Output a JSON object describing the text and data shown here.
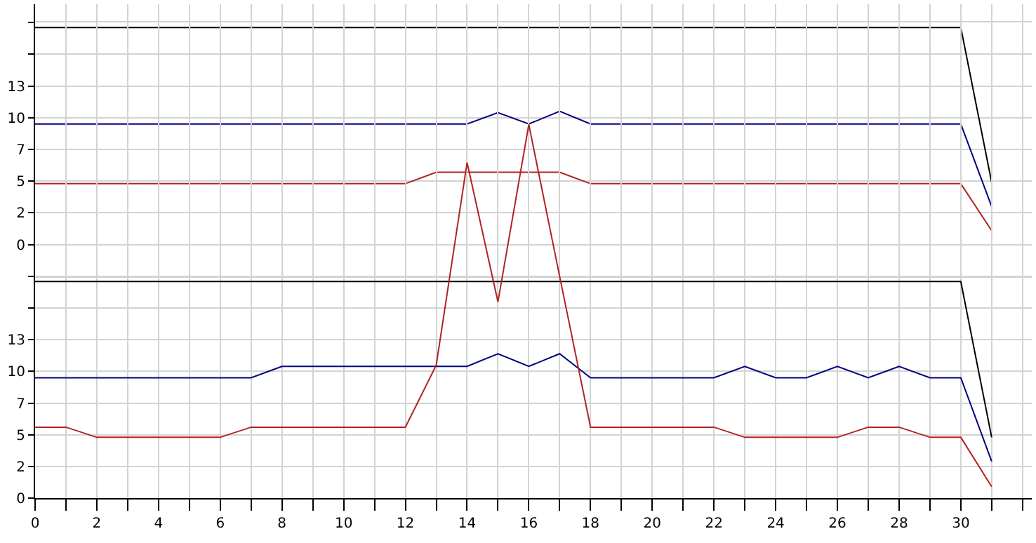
{
  "chart_data": [
    {
      "type": "line",
      "x": [
        0,
        1,
        2,
        3,
        4,
        5,
        6,
        7,
        8,
        9,
        10,
        11,
        12,
        13,
        14,
        15,
        16,
        17,
        18,
        19,
        20,
        21,
        22,
        23,
        24,
        25,
        26,
        27,
        28,
        29,
        30,
        31
      ],
      "series": [
        {
          "color": "#000000",
          "values": [
            17.1,
            17.1,
            17.1,
            17.1,
            17.1,
            17.1,
            17.1,
            17.1,
            17.1,
            17.1,
            17.1,
            17.1,
            17.1,
            17.1,
            17.1,
            17.1,
            17.1,
            17.1,
            17.1,
            17.1,
            17.1,
            17.1,
            17.1,
            17.1,
            17.1,
            17.1,
            17.1,
            17.1,
            17.1,
            17.1,
            17.1,
            4.9
          ]
        },
        {
          "color": "#000080",
          "values": [
            9.5,
            9.5,
            9.5,
            9.5,
            9.5,
            9.5,
            9.5,
            9.5,
            9.5,
            9.5,
            9.5,
            9.5,
            9.5,
            9.5,
            9.5,
            10.4,
            9.5,
            10.5,
            9.5,
            9.5,
            9.5,
            9.5,
            9.5,
            9.5,
            9.5,
            9.5,
            9.5,
            9.5,
            9.5,
            9.5,
            9.5,
            3.0
          ]
        },
        {
          "color": "#b22222",
          "values": [
            4.8,
            4.8,
            4.8,
            4.8,
            4.8,
            4.8,
            4.8,
            4.8,
            4.8,
            4.8,
            4.8,
            4.8,
            4.8,
            5.7,
            5.7,
            5.7,
            5.7,
            5.7,
            4.8,
            4.8,
            4.8,
            4.8,
            4.8,
            4.8,
            4.8,
            4.8,
            4.8,
            4.8,
            4.8,
            4.8,
            4.8,
            1.1
          ]
        }
      ],
      "xlim": [
        0,
        32.3
      ],
      "xticks": [
        0,
        1,
        2,
        3,
        4,
        5,
        6,
        7,
        8,
        9,
        10,
        11,
        12,
        13,
        14,
        15,
        16,
        17,
        18,
        19,
        20,
        21,
        22,
        23,
        24,
        25,
        26,
        27,
        28,
        29,
        30,
        31,
        32
      ],
      "ylim": [
        -2.5,
        17.5
      ],
      "yticks": [
        {
          "value": -2.5,
          "label": null
        },
        0,
        {
          "value": 2.5,
          "label": "2"
        },
        5,
        {
          "value": 7.5,
          "label": "7"
        },
        10,
        {
          "value": 12.5,
          "label": "13"
        },
        {
          "value": 15,
          "label": null
        },
        {
          "value": 17.5,
          "label": null
        }
      ],
      "grid": true,
      "tick_labels": "y"
    },
    {
      "type": "line",
      "x": [
        0,
        1,
        2,
        3,
        4,
        5,
        6,
        7,
        8,
        9,
        10,
        11,
        12,
        13,
        14,
        15,
        16,
        17,
        18,
        19,
        20,
        21,
        22,
        23,
        24,
        25,
        26,
        27,
        28,
        29,
        30,
        31
      ],
      "series": [
        {
          "color": "#000000",
          "values": [
            17.1,
            17.1,
            17.1,
            17.1,
            17.1,
            17.1,
            17.1,
            17.1,
            17.1,
            17.1,
            17.1,
            17.1,
            17.1,
            17.1,
            17.1,
            17.1,
            17.1,
            17.1,
            17.1,
            17.1,
            17.1,
            17.1,
            17.1,
            17.1,
            17.1,
            17.1,
            17.1,
            17.1,
            17.1,
            17.1,
            17.1,
            4.8
          ]
        },
        {
          "color": "#000080",
          "values": [
            9.5,
            9.5,
            9.5,
            9.5,
            9.5,
            9.5,
            9.5,
            9.5,
            10.4,
            10.4,
            10.4,
            10.4,
            10.4,
            10.4,
            10.4,
            11.4,
            10.4,
            11.4,
            9.5,
            9.5,
            9.5,
            9.5,
            9.5,
            10.4,
            9.5,
            9.5,
            10.4,
            9.5,
            10.4,
            9.5,
            9.5,
            2.9
          ]
        },
        {
          "color": "#b22222",
          "values": [
            5.6,
            5.6,
            4.8,
            4.8,
            4.8,
            4.8,
            4.8,
            5.6,
            5.6,
            5.6,
            5.6,
            5.6,
            5.6,
            10.5,
            26.5,
            15.5,
            29.5,
            17.5,
            5.6,
            5.6,
            5.6,
            5.6,
            5.6,
            4.8,
            4.8,
            4.8,
            4.8,
            5.6,
            5.6,
            4.8,
            4.8,
            0.9
          ]
        }
      ],
      "xlim": [
        0,
        32.3
      ],
      "xticks": [
        0,
        {
          "value": 1,
          "label": null
        },
        2,
        {
          "value": 3,
          "label": null
        },
        4,
        {
          "value": 5,
          "label": null
        },
        6,
        {
          "value": 7,
          "label": null
        },
        8,
        {
          "value": 9,
          "label": null
        },
        10,
        {
          "value": 11,
          "label": null
        },
        12,
        {
          "value": 13,
          "label": null
        },
        14,
        {
          "value": 15,
          "label": null
        },
        16,
        {
          "value": 17,
          "label": null
        },
        18,
        {
          "value": 19,
          "label": null
        },
        20,
        {
          "value": 21,
          "label": null
        },
        22,
        {
          "value": 23,
          "label": null
        },
        24,
        {
          "value": 25,
          "label": null
        },
        26,
        {
          "value": 27,
          "label": null
        },
        28,
        {
          "value": 29,
          "label": null
        },
        30,
        {
          "value": 31,
          "label": null
        },
        {
          "value": 32,
          "label": null
        }
      ],
      "ylim": [
        0,
        39
      ],
      "yticks": [
        0,
        {
          "value": 2.5,
          "label": "2"
        },
        5,
        {
          "value": 7.5,
          "label": "7"
        },
        10,
        {
          "value": 12.5,
          "label": "13"
        },
        {
          "value": 15,
          "label": null
        },
        {
          "value": 17.5,
          "label": null
        }
      ],
      "grid": true
    }
  ]
}
